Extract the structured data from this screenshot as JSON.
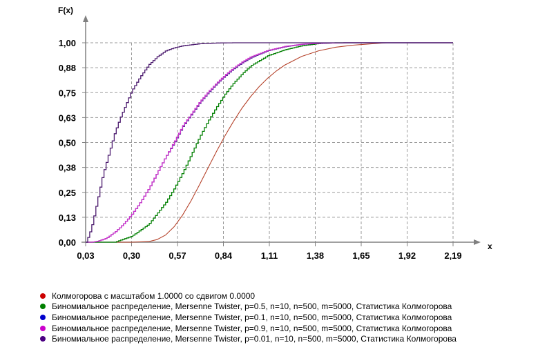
{
  "chart_data": {
    "type": "line",
    "ylabel": "F(x)",
    "xlabel": "x",
    "x_ticks": [
      "0,03",
      "0,30",
      "0,57",
      "0,84",
      "1,11",
      "1,38",
      "1,65",
      "1,92",
      "2,19"
    ],
    "y_ticks": [
      "0,00",
      "0,13",
      "0,25",
      "0,38",
      "0,50",
      "0,63",
      "0,75",
      "0,88",
      "1,00"
    ],
    "xlim": [
      0.03,
      2.19
    ],
    "ylim": [
      0,
      1
    ],
    "grid": true,
    "legend_position": "bottom",
    "series": [
      {
        "name": "Колмогорова с масштабом 1.0000 со сдвигом 0.0000",
        "color": "#cc0000",
        "line_color": "#b5422a",
        "style": "smooth",
        "x": [
          0.3,
          0.4,
          0.45,
          0.5,
          0.55,
          0.6,
          0.65,
          0.7,
          0.75,
          0.8,
          0.85,
          0.9,
          0.95,
          1.0,
          1.05,
          1.1,
          1.15,
          1.2,
          1.3,
          1.4,
          1.5,
          1.6,
          1.7,
          1.8
        ],
        "values": [
          0.0,
          0.003,
          0.013,
          0.036,
          0.077,
          0.136,
          0.208,
          0.289,
          0.373,
          0.456,
          0.535,
          0.607,
          0.673,
          0.73,
          0.78,
          0.822,
          0.858,
          0.888,
          0.932,
          0.96,
          0.978,
          0.988,
          0.994,
          1.0
        ]
      },
      {
        "name": "Биномиальное распределение, Mersenne Twister, p=0.5, n=10, n=500, m=5000, Статистика Колмогорова",
        "color": "#007f00",
        "line_color": "#007f00",
        "style": "step",
        "x": [
          0.2,
          0.3,
          0.4,
          0.5,
          0.55,
          0.6,
          0.65,
          0.7,
          0.75,
          0.8,
          0.85,
          0.9,
          0.95,
          1.0,
          1.1,
          1.2,
          1.3,
          1.4,
          1.5
        ],
        "values": [
          0.0,
          0.03,
          0.09,
          0.2,
          0.27,
          0.35,
          0.44,
          0.53,
          0.61,
          0.68,
          0.745,
          0.8,
          0.845,
          0.885,
          0.935,
          0.965,
          0.985,
          0.996,
          1.0
        ]
      },
      {
        "name": "Биномиальное распределение, Mersenne Twister, p=0.1, n=10, n=500, m=5000, Статистика Колмогорова",
        "color": "#0000cc",
        "line_color": "#5a2a9e",
        "style": "step",
        "x": [
          0.06,
          0.1,
          0.15,
          0.2,
          0.25,
          0.3,
          0.35,
          0.4,
          0.45,
          0.5,
          0.55,
          0.6,
          0.65,
          0.7,
          0.75,
          0.8,
          0.85,
          0.9,
          0.95,
          1.0,
          1.1,
          1.2,
          1.3,
          1.4,
          1.55
        ],
        "values": [
          0.0,
          0.005,
          0.02,
          0.05,
          0.09,
          0.14,
          0.2,
          0.27,
          0.35,
          0.43,
          0.5,
          0.58,
          0.64,
          0.7,
          0.75,
          0.795,
          0.835,
          0.87,
          0.9,
          0.925,
          0.96,
          0.98,
          0.992,
          0.997,
          1.0
        ]
      },
      {
        "name": "Биномиальное распределение, Mersenne Twister, p=0.9, n=10, n=500, m=5000, Статистика Колмогорова",
        "color": "#cc00cc",
        "line_color": "#cc33cc",
        "style": "step",
        "x": [
          0.06,
          0.1,
          0.15,
          0.2,
          0.25,
          0.3,
          0.35,
          0.4,
          0.45,
          0.5,
          0.55,
          0.6,
          0.65,
          0.7,
          0.75,
          0.8,
          0.85,
          0.9,
          0.95,
          1.0,
          1.1,
          1.2,
          1.3,
          1.4,
          1.55
        ],
        "values": [
          0.0,
          0.005,
          0.02,
          0.05,
          0.09,
          0.14,
          0.2,
          0.27,
          0.35,
          0.43,
          0.505,
          0.585,
          0.645,
          0.705,
          0.755,
          0.8,
          0.84,
          0.875,
          0.905,
          0.93,
          0.962,
          0.982,
          0.993,
          0.998,
          1.0
        ]
      },
      {
        "name": "Биномиальное распределение, Mersenne Twister, p=0.01, n=10, n=500, m=5000, Статистика Колмогорова",
        "color": "#4b0082",
        "line_color": "#4b1a6e",
        "style": "step",
        "x": [
          0.03,
          0.05,
          0.07,
          0.09,
          0.11,
          0.13,
          0.15,
          0.17,
          0.2,
          0.23,
          0.26,
          0.3,
          0.35,
          0.4,
          0.45,
          0.5,
          0.55,
          0.6,
          0.7,
          0.8,
          0.9
        ],
        "values": [
          0.0,
          0.04,
          0.1,
          0.18,
          0.26,
          0.34,
          0.4,
          0.46,
          0.55,
          0.62,
          0.68,
          0.76,
          0.83,
          0.89,
          0.93,
          0.96,
          0.975,
          0.985,
          0.995,
          0.999,
          1.0
        ]
      }
    ]
  }
}
